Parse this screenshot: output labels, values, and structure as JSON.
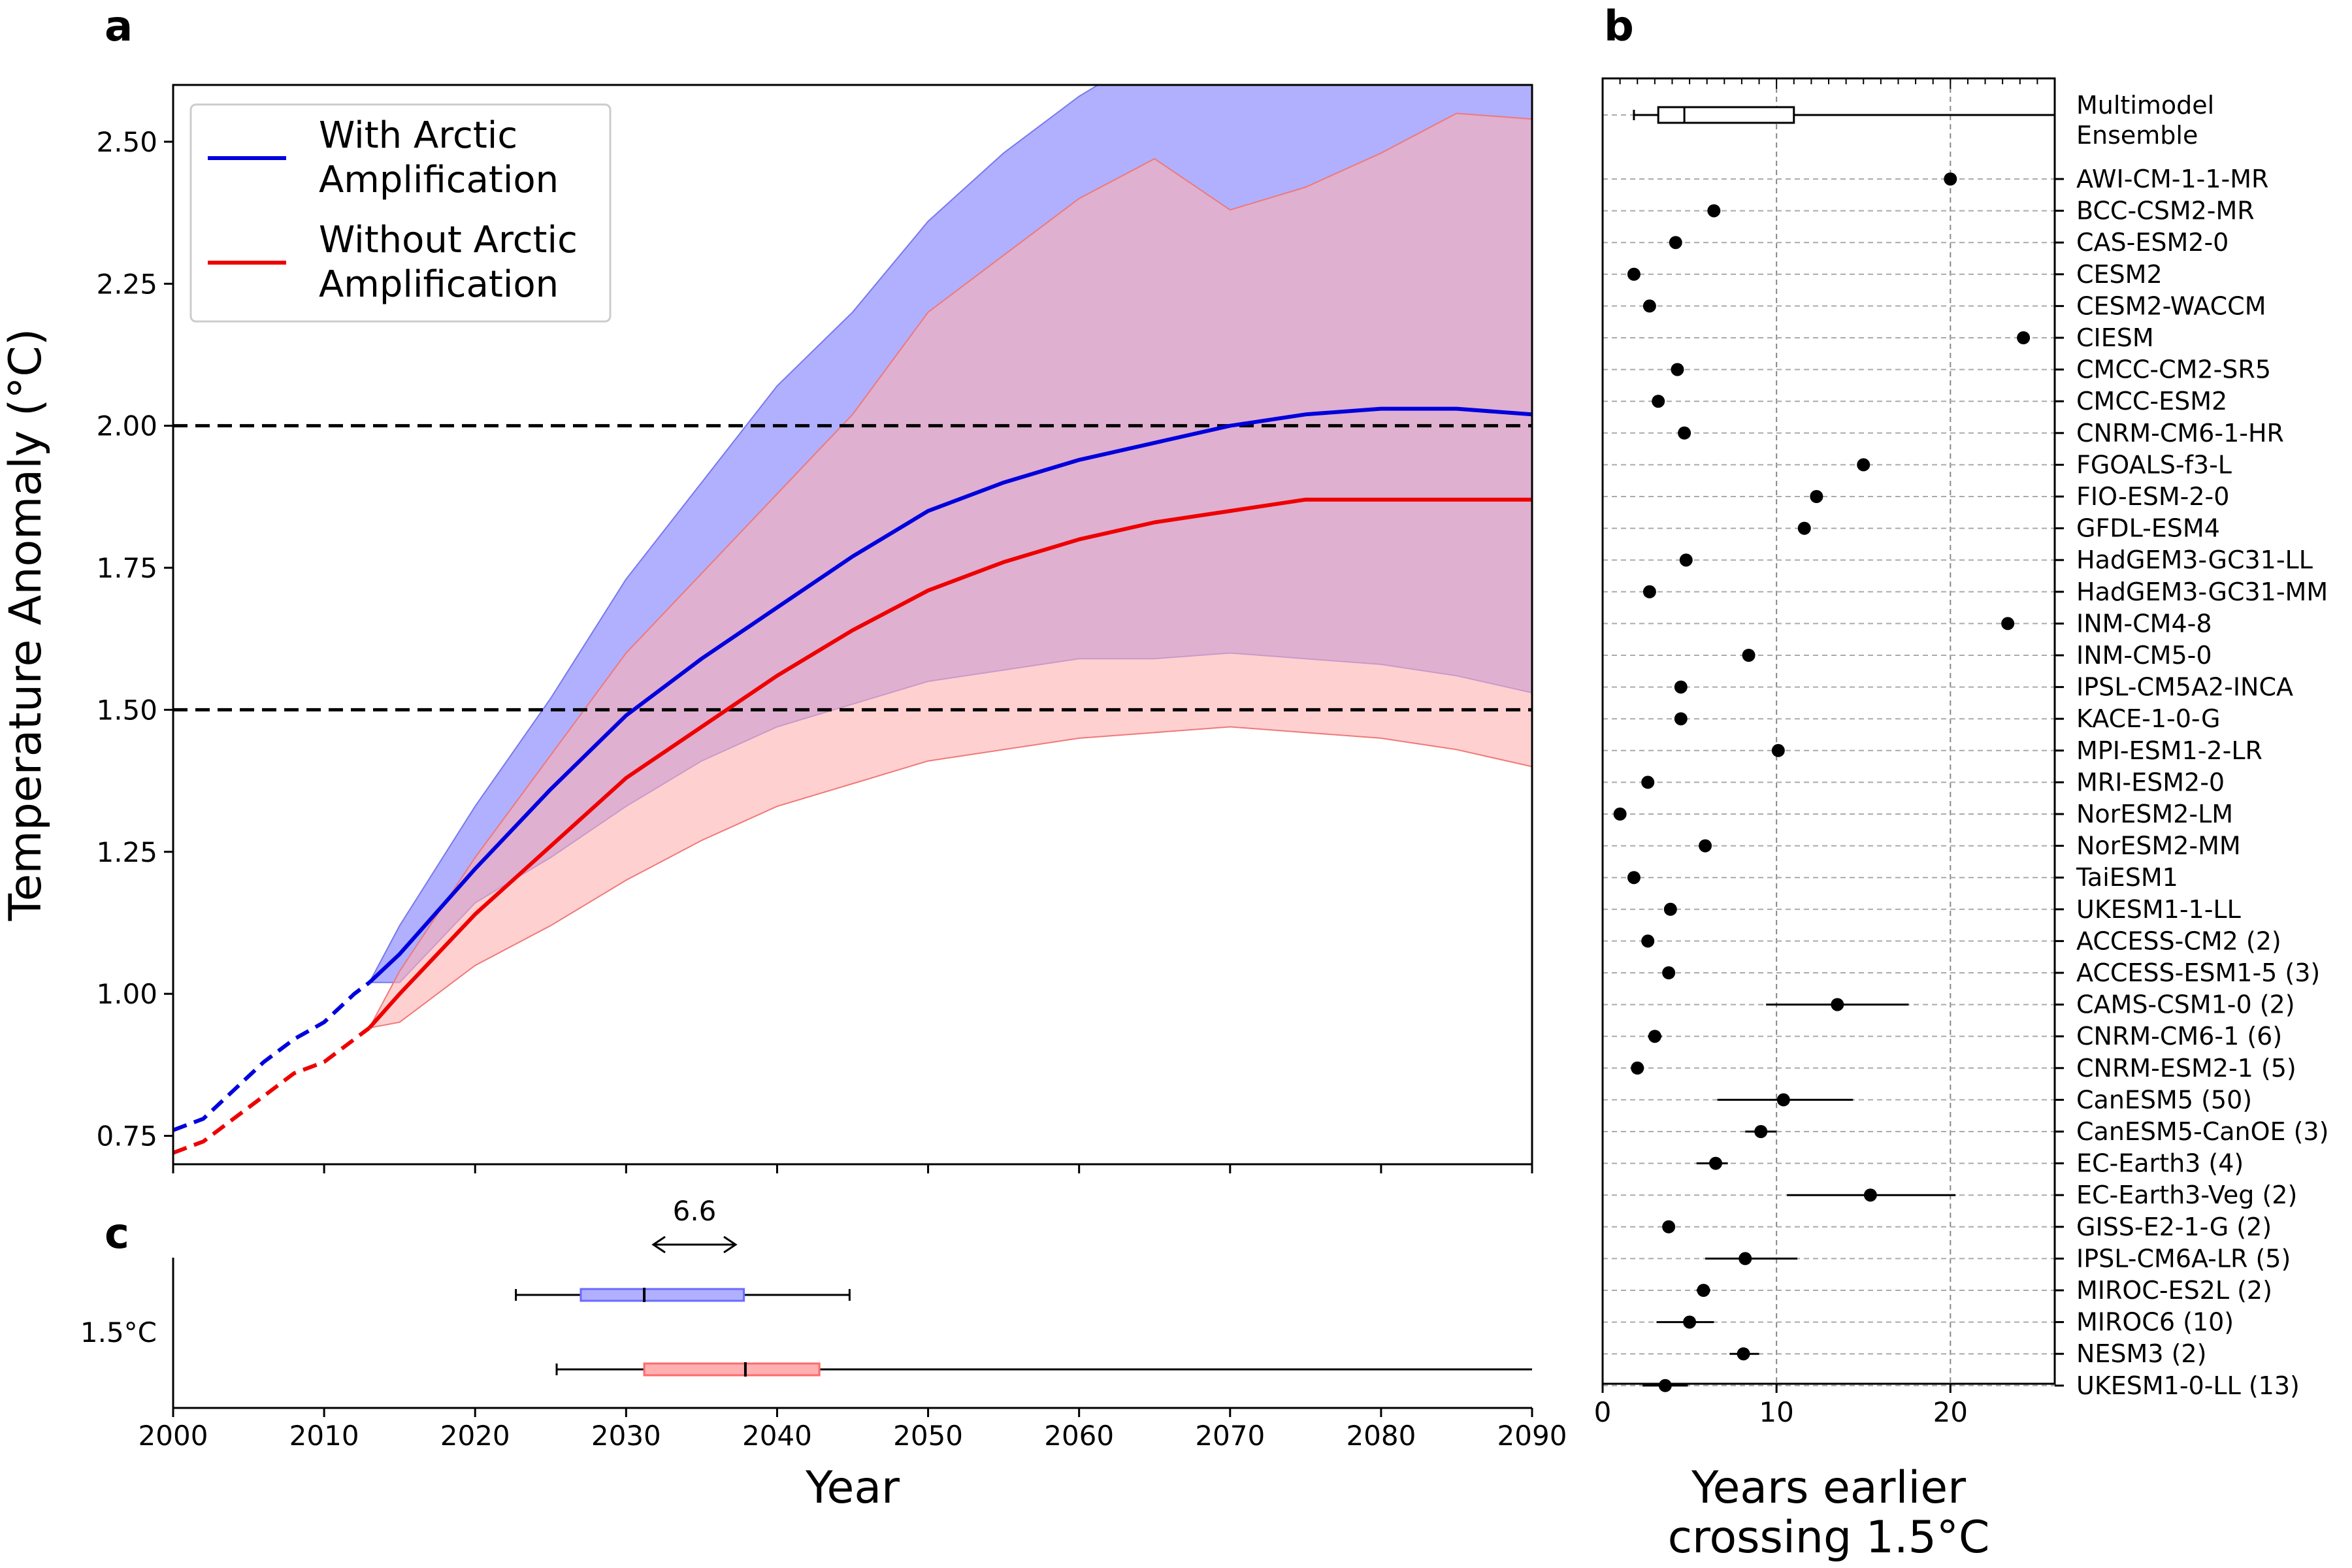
{
  "panels": {
    "a": "a",
    "b": "b",
    "c": "c"
  },
  "colors": {
    "arctic": "#0000dd",
    "no_arctic": "#ee0000",
    "arctic_band": "#b0b0ff",
    "no_arctic_band": "#ffb0b0",
    "overlap_band": "#c87ab0"
  },
  "chart_data": [
    {
      "panel": "a",
      "type": "line",
      "xlabel": "",
      "ylabel": "Temperature Anomaly (°C)",
      "xlim": [
        2000,
        2090
      ],
      "ylim": [
        0.7,
        2.6
      ],
      "xticks": [
        2000,
        2010,
        2020,
        2030,
        2040,
        2050,
        2060,
        2070,
        2080,
        2090
      ],
      "yticks": [
        0.75,
        1.0,
        1.25,
        1.5,
        1.75,
        2.0,
        2.25,
        2.5
      ],
      "ytick_labels": [
        "0.75",
        "1.00",
        "1.25",
        "1.50",
        "1.75",
        "2.00",
        "2.25",
        "2.50"
      ],
      "reference_lines": [
        1.5,
        2.0
      ],
      "legend_position": "upper-left",
      "series": [
        {
          "name": "With Arctic Amplification",
          "color": "#0000dd",
          "historical_dashed": {
            "x": [
              2000,
              2002,
              2004,
              2006,
              2008,
              2010,
              2012,
              2013
            ],
            "y": [
              0.76,
              0.78,
              0.83,
              0.88,
              0.92,
              0.95,
              1.0,
              1.02
            ]
          },
          "x": [
            2013,
            2015,
            2020,
            2025,
            2030,
            2035,
            2040,
            2045,
            2050,
            2055,
            2060,
            2065,
            2070,
            2075,
            2080,
            2085,
            2090
          ],
          "y": [
            1.02,
            1.07,
            1.22,
            1.36,
            1.49,
            1.59,
            1.68,
            1.77,
            1.85,
            1.9,
            1.94,
            1.97,
            2.0,
            2.02,
            2.03,
            2.03,
            2.02
          ],
          "band_upper": [
            1.02,
            1.12,
            1.33,
            1.52,
            1.73,
            1.9,
            2.07,
            2.2,
            2.36,
            2.48,
            2.58,
            2.66,
            2.72,
            2.78,
            2.85,
            2.9,
            2.95
          ],
          "band_lower": [
            1.02,
            1.02,
            1.16,
            1.24,
            1.33,
            1.41,
            1.47,
            1.51,
            1.55,
            1.57,
            1.59,
            1.59,
            1.6,
            1.59,
            1.58,
            1.56,
            1.53
          ]
        },
        {
          "name": "Without Arctic Amplification",
          "color": "#ee0000",
          "historical_dashed": {
            "x": [
              2000,
              2002,
              2004,
              2006,
              2008,
              2010,
              2012,
              2013
            ],
            "y": [
              0.72,
              0.74,
              0.78,
              0.82,
              0.86,
              0.88,
              0.92,
              0.94
            ]
          },
          "x": [
            2013,
            2015,
            2020,
            2025,
            2030,
            2035,
            2040,
            2045,
            2050,
            2055,
            2060,
            2065,
            2070,
            2075,
            2080,
            2085,
            2090
          ],
          "y": [
            0.94,
            1.0,
            1.14,
            1.26,
            1.38,
            1.47,
            1.56,
            1.64,
            1.71,
            1.76,
            1.8,
            1.83,
            1.85,
            1.87,
            1.87,
            1.87,
            1.87
          ],
          "band_upper": [
            0.94,
            1.04,
            1.24,
            1.42,
            1.6,
            1.74,
            1.88,
            2.02,
            2.2,
            2.3,
            2.4,
            2.47,
            2.38,
            2.42,
            2.48,
            2.55,
            2.54
          ],
          "band_lower": [
            0.94,
            0.95,
            1.05,
            1.12,
            1.2,
            1.27,
            1.33,
            1.37,
            1.41,
            1.43,
            1.45,
            1.46,
            1.47,
            1.46,
            1.45,
            1.43,
            1.4
          ]
        }
      ]
    },
    {
      "panel": "c",
      "type": "box",
      "xlabel": "Year",
      "category_label": "1.5°C",
      "xlim": [
        2000,
        2090
      ],
      "xticks": [
        2000,
        2010,
        2020,
        2030,
        2040,
        2050,
        2060,
        2070,
        2080,
        2090
      ],
      "annotation": "6.6",
      "boxes": [
        {
          "color": "#b0b0ff",
          "edge": "#6a6aff",
          "whisker_low": 2022.7,
          "q1": 2027.0,
          "median": 2031.2,
          "q3": 2037.8,
          "whisker_high": 2044.8
        },
        {
          "color": "#ffb0b0",
          "edge": "#ff6a6a",
          "whisker_low": 2025.4,
          "q1": 2031.2,
          "median": 2037.9,
          "q3": 2042.8,
          "whisker_high": 2090
        }
      ]
    },
    {
      "panel": "b",
      "type": "scatter",
      "xlabel": "Years earlier\ncrossing 1.5°C",
      "xlim": [
        0,
        26
      ],
      "xticks": [
        0,
        10,
        20
      ],
      "ensemble": {
        "label_line1": "Multimodel",
        "label_line2": "Ensemble",
        "whisker_low": 1.8,
        "q1": 3.2,
        "median": 4.7,
        "q3": 11.0,
        "whisker_high": 26
      },
      "models": [
        {
          "name": "AWI-CM-1-1-MR",
          "value": 20.0
        },
        {
          "name": "BCC-CSM2-MR",
          "value": 6.4
        },
        {
          "name": "CAS-ESM2-0",
          "value": 4.2
        },
        {
          "name": "CESM2",
          "value": 1.8
        },
        {
          "name": "CESM2-WACCM",
          "value": 2.7
        },
        {
          "name": "CIESM",
          "value": 24.2
        },
        {
          "name": "CMCC-CM2-SR5",
          "value": 4.3
        },
        {
          "name": "CMCC-ESM2",
          "value": 3.2
        },
        {
          "name": "CNRM-CM6-1-HR",
          "value": 4.7
        },
        {
          "name": "FGOALS-f3-L",
          "value": 15.0
        },
        {
          "name": "FIO-ESM-2-0",
          "value": 12.3
        },
        {
          "name": "GFDL-ESM4",
          "value": 11.6
        },
        {
          "name": "HadGEM3-GC31-LL",
          "value": 4.8
        },
        {
          "name": "HadGEM3-GC31-MM",
          "value": 2.7
        },
        {
          "name": "INM-CM4-8",
          "value": 23.3
        },
        {
          "name": "INM-CM5-0",
          "value": 8.4
        },
        {
          "name": "IPSL-CM5A2-INCA",
          "value": 4.5
        },
        {
          "name": "KACE-1-0-G",
          "value": 4.5
        },
        {
          "name": "MPI-ESM1-2-LR",
          "value": 10.1
        },
        {
          "name": "MRI-ESM2-0",
          "value": 2.6
        },
        {
          "name": "NorESM2-LM",
          "value": 1.0
        },
        {
          "name": "NorESM2-MM",
          "value": 5.9
        },
        {
          "name": "TaiESM1",
          "value": 1.8
        },
        {
          "name": "UKESM1-1-LL",
          "value": 3.9
        },
        {
          "name": "ACCESS-CM2 (2)",
          "value": 2.6
        },
        {
          "name": "ACCESS-ESM1-5 (3)",
          "value": 3.8
        },
        {
          "name": "CAMS-CSM1-0 (2)",
          "value": 13.5,
          "low": 9.4,
          "high": 17.6
        },
        {
          "name": "CNRM-CM6-1 (6)",
          "value": 3.0,
          "low": 2.6,
          "high": 3.4
        },
        {
          "name": "CNRM-ESM2-1 (5)",
          "value": 2.0,
          "low": 1.7,
          "high": 2.3
        },
        {
          "name": "CanESM5 (50)",
          "value": 10.4,
          "low": 6.6,
          "high": 14.4
        },
        {
          "name": "CanESM5-CanOE (3)",
          "value": 9.1,
          "low": 8.2,
          "high": 10.0
        },
        {
          "name": "EC-Earth3 (4)",
          "value": 6.5,
          "low": 5.4,
          "high": 7.2
        },
        {
          "name": "EC-Earth3-Veg (2)",
          "value": 15.4,
          "low": 10.6,
          "high": 20.3
        },
        {
          "name": "GISS-E2-1-G (2)",
          "value": 3.8
        },
        {
          "name": "IPSL-CM6A-LR (5)",
          "value": 8.2,
          "low": 5.9,
          "high": 11.2
        },
        {
          "name": "MIROC-ES2L (2)",
          "value": 5.8,
          "low": 5.4,
          "high": 6.2
        },
        {
          "name": "MIROC6 (10)",
          "value": 5.0,
          "low": 3.1,
          "high": 6.4
        },
        {
          "name": "NESM3 (2)",
          "value": 8.1,
          "low": 7.3,
          "high": 9.0
        },
        {
          "name": "UKESM1-0-LL (13)",
          "value": 3.6,
          "low": 2.3,
          "high": 4.9
        }
      ]
    }
  ]
}
